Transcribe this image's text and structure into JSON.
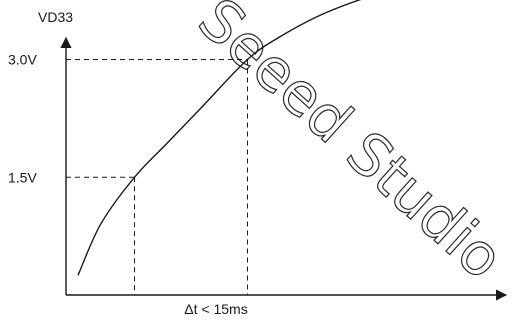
{
  "watermark": "Seeed Studio",
  "chart_data": {
    "type": "line",
    "title": "",
    "ylabel": "VD33",
    "xlabel": "",
    "grid": false,
    "x_unit": "ms",
    "ylim": [
      0,
      4.2
    ],
    "yticks": [
      {
        "value": 1.5,
        "label": "1.5V"
      },
      {
        "value": 3.0,
        "label": "3.0V"
      }
    ],
    "series": [
      {
        "x": [
          0,
          2,
          5,
          8,
          11,
          15,
          18,
          22,
          27,
          32,
          35
        ],
        "y": [
          0.25,
          0.9,
          1.5,
          1.95,
          2.4,
          3.0,
          3.3,
          3.6,
          3.85,
          3.98,
          4.0
        ]
      }
    ],
    "annotations": [
      {
        "type": "interval",
        "from_y": 1.5,
        "to_y": 3.0,
        "label": "Δt < 15ms"
      }
    ]
  }
}
